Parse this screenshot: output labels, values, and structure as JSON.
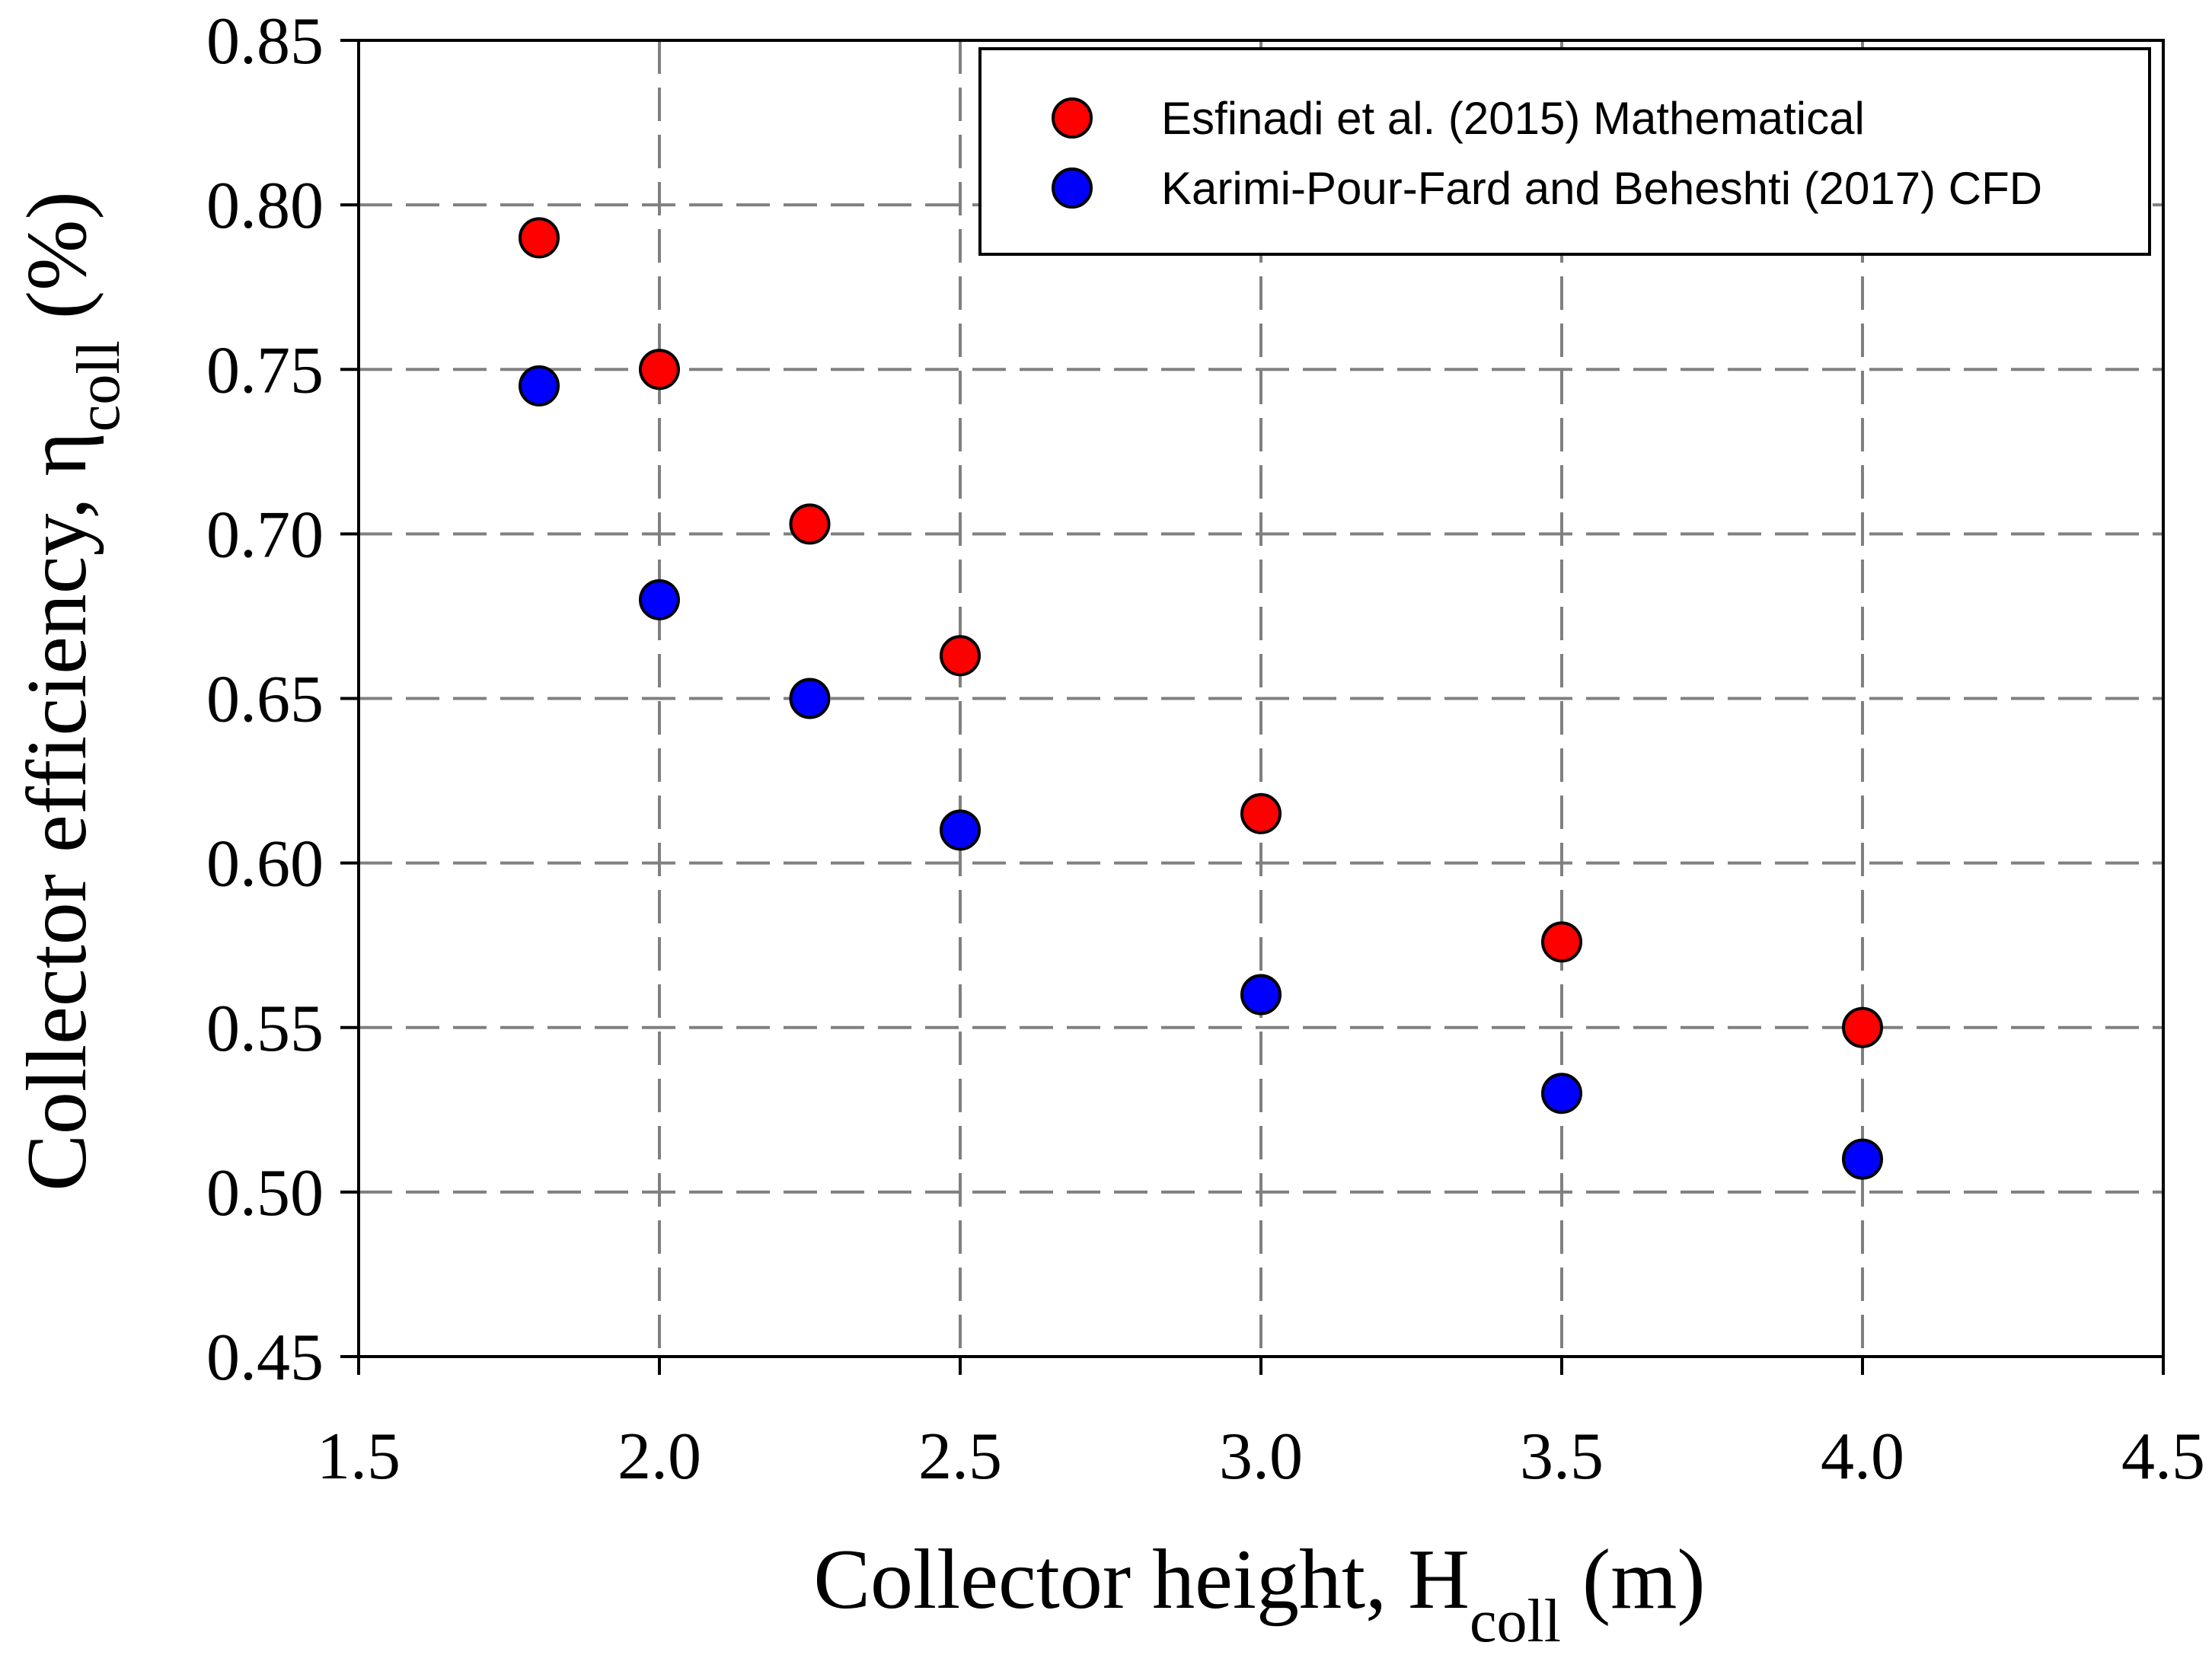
{
  "chart_data": {
    "type": "scatter",
    "xlabel": "Collector height, H",
    "xlabel_sub": "coll",
    "xlabel_unit": " (m)",
    "ylabel": "Collector efficiency, η",
    "ylabel_sub": "coll",
    "ylabel_unit": " (%)",
    "xlim": [
      1.5,
      4.5
    ],
    "ylim": [
      0.45,
      0.85
    ],
    "xticks": [
      1.5,
      2.0,
      2.5,
      3.0,
      3.5,
      4.0,
      4.5
    ],
    "xtick_labels": [
      "1.5",
      "2.0",
      "2.5",
      "3.0",
      "3.5",
      "4.0",
      "4.5"
    ],
    "yticks": [
      0.45,
      0.5,
      0.55,
      0.6,
      0.65,
      0.7,
      0.75,
      0.8,
      0.85
    ],
    "ytick_labels": [
      "0.45",
      "0.50",
      "0.55",
      "0.60",
      "0.65",
      "0.70",
      "0.75",
      "0.80",
      "0.85"
    ],
    "grid": true,
    "legend_position": "top-right",
    "series": [
      {
        "name": "Esfinadi et al. (2015) Mathematical",
        "color": "#ff0000",
        "x": [
          1.8,
          2.0,
          2.25,
          2.5,
          3.0,
          3.5,
          4.0
        ],
        "y": [
          0.79,
          0.75,
          0.703,
          0.663,
          0.615,
          0.576,
          0.55
        ]
      },
      {
        "name": "Karimi-Pour-Fard and Beheshti (2017) CFD",
        "color": "#0000ff",
        "x": [
          1.8,
          2.0,
          2.25,
          2.5,
          3.0,
          3.5,
          4.0
        ],
        "y": [
          0.745,
          0.68,
          0.65,
          0.61,
          0.56,
          0.53,
          0.51
        ]
      }
    ]
  }
}
